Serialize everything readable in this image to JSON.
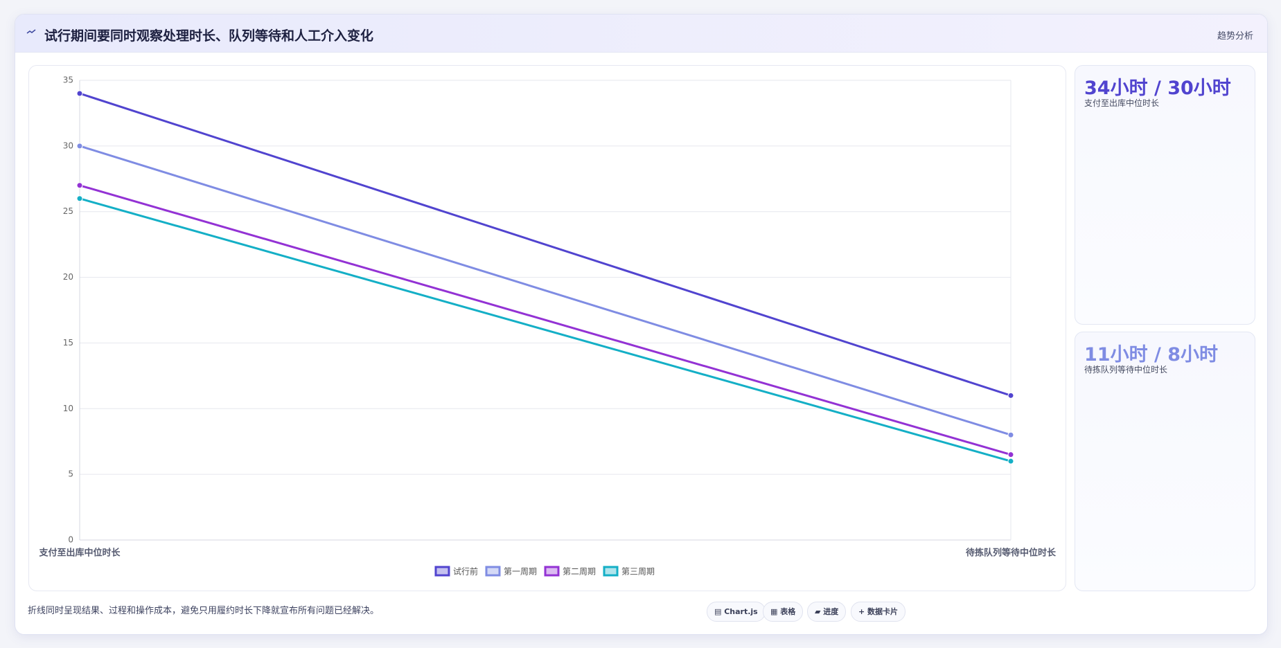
{
  "header": {
    "title": "试行期间要同时观察处理时长、队列等待和人工介入变化",
    "badge": "趋势分析"
  },
  "chart_data": {
    "type": "line",
    "categories": [
      "支付至出库中位时长",
      "待拣队列等待中位时长"
    ],
    "series": [
      {
        "name": "试行前",
        "color": "#5144cf",
        "values": [
          34,
          11
        ]
      },
      {
        "name": "第一周期",
        "color": "#7f8ce3",
        "values": [
          30,
          8
        ]
      },
      {
        "name": "第二周期",
        "color": "#9332d4",
        "values": [
          27,
          6.5
        ]
      },
      {
        "name": "第三周期",
        "color": "#14afc6",
        "values": [
          26,
          6
        ]
      }
    ],
    "ylim": [
      0,
      35
    ],
    "yticks": [
      0,
      5,
      10,
      15,
      20,
      25,
      30,
      35
    ],
    "grid": true,
    "legend": "bottom"
  },
  "cards": [
    {
      "value": "34小时 / 30小时",
      "label": "支付至出库中位时长",
      "color": "#5144cf"
    },
    {
      "value": "11小时 / 8小时",
      "label": "待拣队列等待中位时长",
      "color": "#7f8ce3"
    }
  ],
  "footer": {
    "note": "折线同时呈现结果、过程和操作成本，避免只用履约时长下降就宣布所有问题已经解决。",
    "buttons": [
      "▤ Chart.js",
      "▦ 表格",
      "▰ 进度",
      "+ 数据卡片"
    ]
  }
}
